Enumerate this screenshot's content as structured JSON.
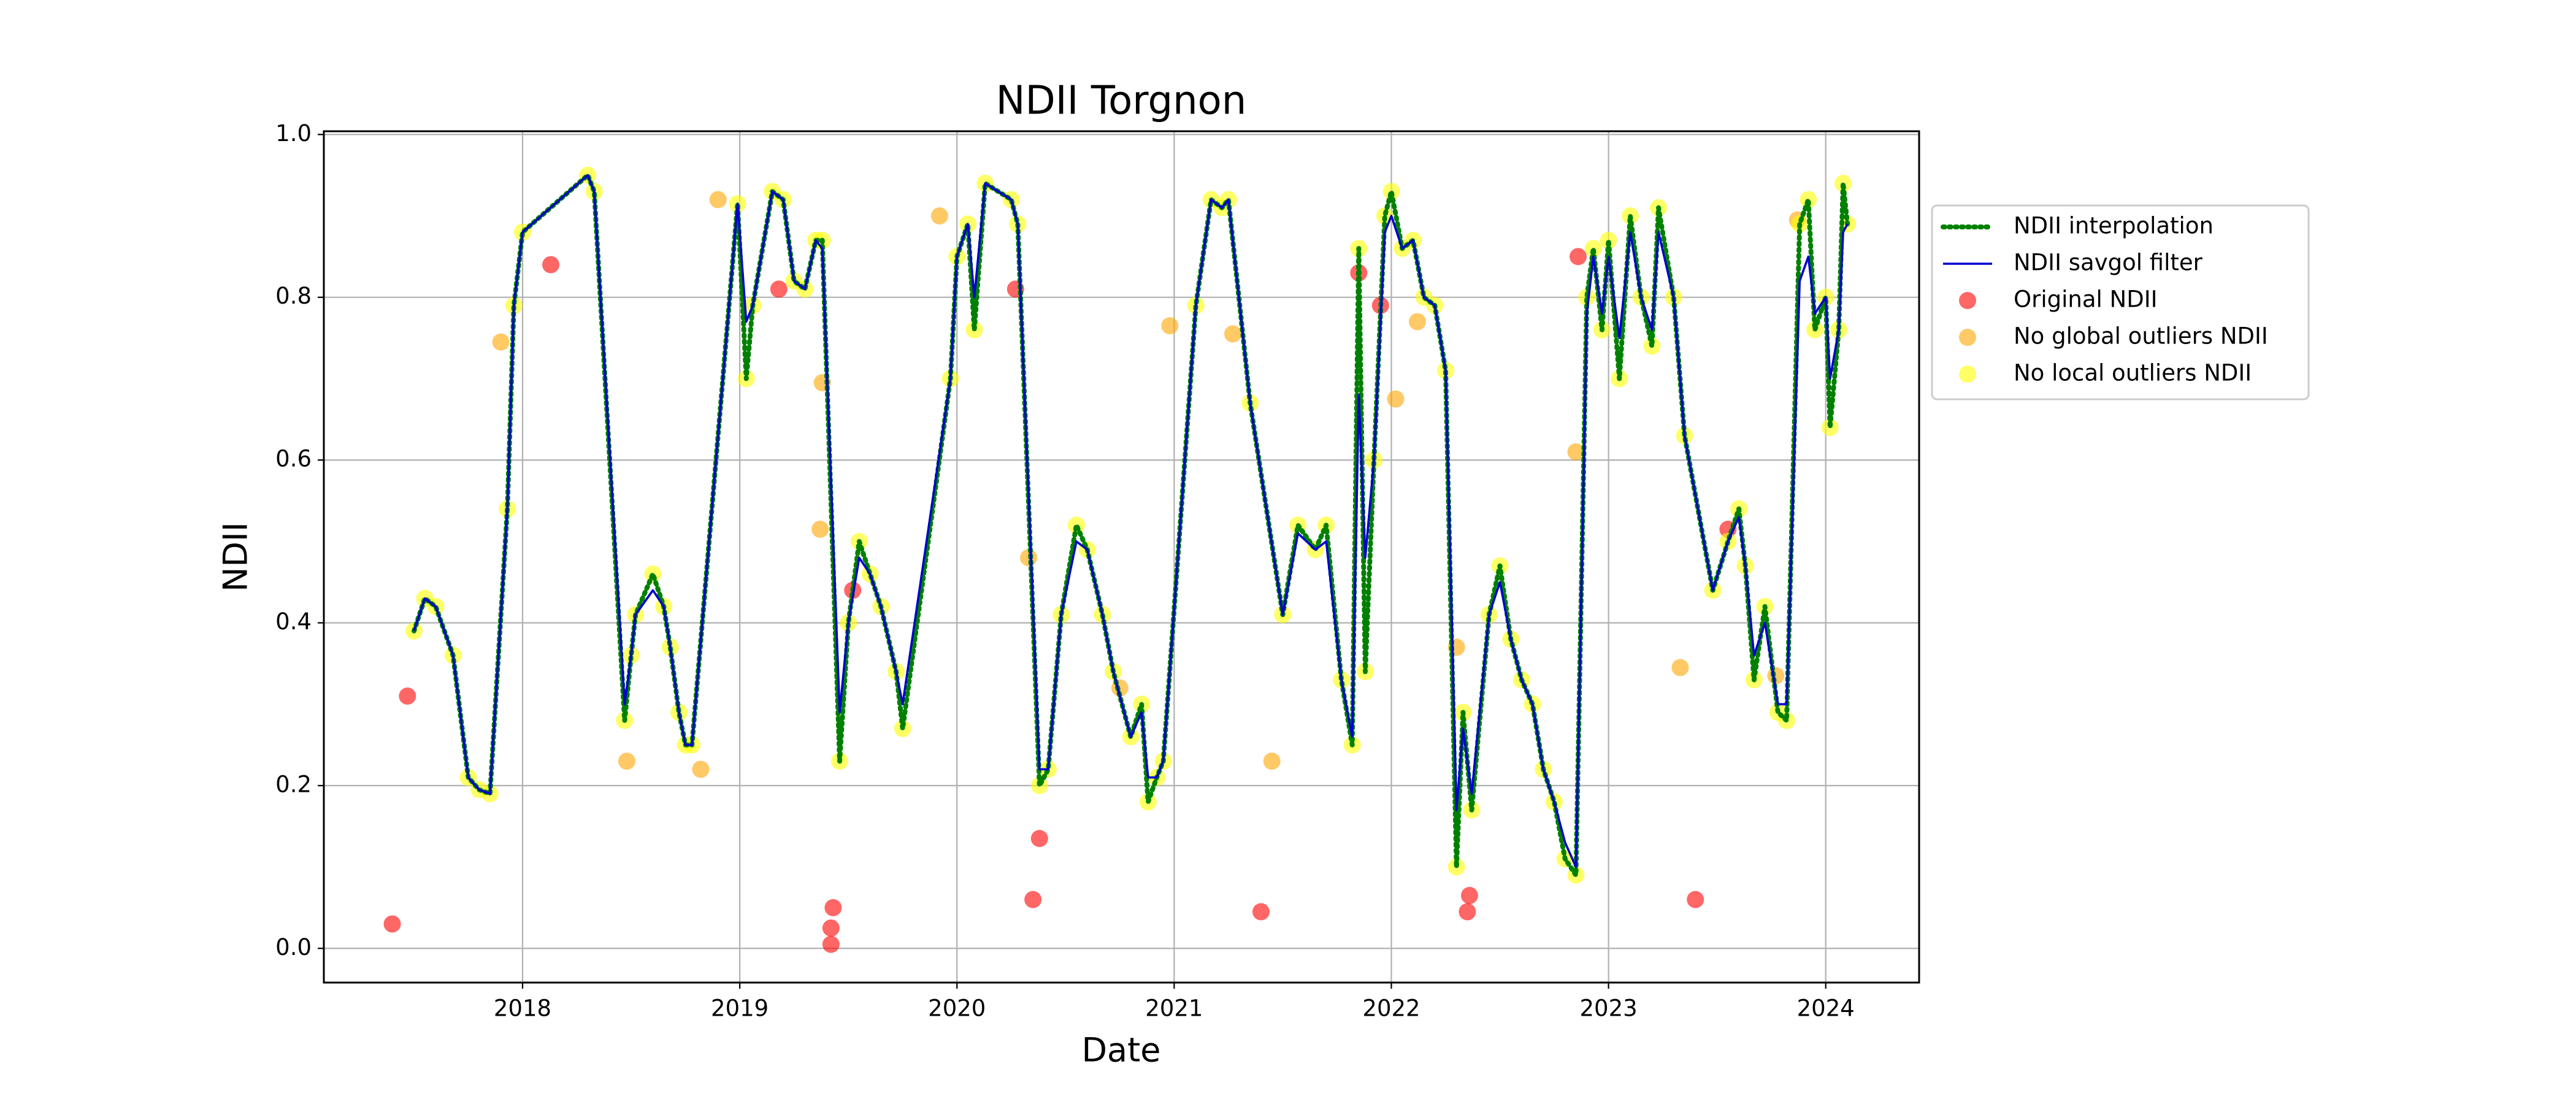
{
  "chart_data": {
    "type": "line",
    "title": "NDII Torgnon",
    "x_label": "Date",
    "y_label": "NDII",
    "xlim": [
      2017.085,
      2024.43
    ],
    "xticks": [
      2018,
      2019,
      2020,
      2021,
      2022,
      2023,
      2024
    ],
    "ylim": [
      -0.042,
      1.004
    ],
    "yticks": [
      {
        "value": 0,
        "label": "0.0"
      },
      {
        "value": 0.2,
        "label": "0.2"
      },
      {
        "value": 0.4,
        "label": "0.4"
      },
      {
        "value": 0.6,
        "label": "0.6"
      },
      {
        "value": 0.8,
        "label": "0.8"
      },
      {
        "value": 1,
        "label": "1.0"
      }
    ],
    "grid": true,
    "legend": "right",
    "x": [
      2017.5,
      2017.55,
      2017.6,
      2017.68,
      2017.75,
      2017.8,
      2017.85,
      2017.93,
      2017.96,
      2018.0,
      2018.3,
      2018.33,
      2018.47,
      2018.5,
      2018.52,
      2018.6,
      2018.65,
      2018.68,
      2018.72,
      2018.75,
      2018.78,
      2018.99,
      2019.03,
      2019.06,
      2019.15,
      2019.2,
      2019.25,
      2019.3,
      2019.35,
      2019.38,
      2019.46,
      2019.5,
      2019.55,
      2019.6,
      2019.65,
      2019.72,
      2019.75,
      2019.97,
      2020.0,
      2020.05,
      2020.08,
      2020.13,
      2020.25,
      2020.28,
      2020.38,
      2020.42,
      2020.48,
      2020.55,
      2020.6,
      2020.67,
      2020.72,
      2020.8,
      2020.85,
      2020.88,
      2020.92,
      2020.95,
      2021.1,
      2021.17,
      2021.22,
      2021.25,
      2021.35,
      2021.5,
      2021.57,
      2021.65,
      2021.7,
      2021.77,
      2021.82,
      2021.85,
      2021.88,
      2021.92,
      2021.97,
      2022.0,
      2022.05,
      2022.1,
      2022.15,
      2022.2,
      2022.25,
      2022.3,
      2022.33,
      2022.37,
      2022.45,
      2022.5,
      2022.55,
      2022.6,
      2022.65,
      2022.7,
      2022.75,
      2022.8,
      2022.85,
      2022.9,
      2022.93,
      2022.97,
      2023.0,
      2023.05,
      2023.1,
      2023.15,
      2023.2,
      2023.23,
      2023.3,
      2023.35,
      2023.48,
      2023.55,
      2023.6,
      2023.63,
      2023.67,
      2023.72,
      2023.78,
      2023.82,
      2023.88,
      2023.92,
      2023.95,
      2024.0,
      2024.02,
      2024.06,
      2024.08,
      2024.1
    ],
    "series": [
      {
        "name": "Original NDII",
        "type": "scatter",
        "color": "#ff0000",
        "x": [
          2017.4,
          2017.47,
          2018.13,
          2019.18,
          2019.42,
          2019.42,
          2019.43,
          2019.52,
          2020.27,
          2020.35,
          2020.38,
          2021.4,
          2021.85,
          2021.95,
          2022.35,
          2022.36,
          2022.86,
          2023.4,
          2023.55
        ],
        "values": [
          0.03,
          0.31,
          0.84,
          0.81,
          0.005,
          0.025,
          0.05,
          0.44,
          0.81,
          0.06,
          0.135,
          0.045,
          0.83,
          0.79,
          0.045,
          0.065,
          0.85,
          0.06,
          0.515
        ]
      },
      {
        "name": "No global outliers NDII",
        "type": "scatter",
        "color": "#ffa500",
        "x": [
          2017.9,
          2018.48,
          2018.82,
          2018.9,
          2019.37,
          2019.38,
          2019.92,
          2020.33,
          2020.75,
          2020.98,
          2021.27,
          2021.45,
          2022.02,
          2022.12,
          2022.3,
          2022.85,
          2023.33,
          2023.77,
          2023.87
        ],
        "values": [
          0.745,
          0.23,
          0.22,
          0.92,
          0.515,
          0.695,
          0.9,
          0.48,
          0.32,
          0.765,
          0.755,
          0.23,
          0.675,
          0.77,
          0.37,
          0.61,
          0.345,
          0.335,
          0.895
        ]
      },
      {
        "name": "No local outliers NDII",
        "type": "scatter",
        "color": "#ffff00",
        "values": [
          0.39,
          0.43,
          0.42,
          0.36,
          0.21,
          0.195,
          0.19,
          0.54,
          0.79,
          0.88,
          0.95,
          0.93,
          0.28,
          0.36,
          0.41,
          0.46,
          0.42,
          0.37,
          0.29,
          0.25,
          0.25,
          0.915,
          0.7,
          0.79,
          0.93,
          0.92,
          0.82,
          0.81,
          0.87,
          0.87,
          0.23,
          0.4,
          0.5,
          0.46,
          0.42,
          0.34,
          0.27,
          0.7,
          0.85,
          0.89,
          0.76,
          0.94,
          0.92,
          0.89,
          0.2,
          0.22,
          0.41,
          0.52,
          0.49,
          0.41,
          0.34,
          0.26,
          0.3,
          0.18,
          0.21,
          0.23,
          0.79,
          0.92,
          0.91,
          0.92,
          0.67,
          0.41,
          0.52,
          0.49,
          0.52,
          0.33,
          0.25,
          0.86,
          0.34,
          0.6,
          0.9,
          0.93,
          0.86,
          0.87,
          0.8,
          0.79,
          0.71,
          0.1,
          0.29,
          0.17,
          0.41,
          0.47,
          0.38,
          0.33,
          0.3,
          0.22,
          0.18,
          0.11,
          0.09,
          0.8,
          0.86,
          0.76,
          0.87,
          0.7,
          0.9,
          0.8,
          0.74,
          0.91,
          0.8,
          0.63,
          0.44,
          0.5,
          0.54,
          0.47,
          0.33,
          0.42,
          0.29,
          0.28,
          0.89,
          0.92,
          0.76,
          0.8,
          0.64,
          0.76,
          0.94,
          0.89
        ]
      },
      {
        "name": "NDII interpolation",
        "type": "line",
        "style": "dotted",
        "color": "#008000",
        "values": [
          0.39,
          0.43,
          0.42,
          0.36,
          0.21,
          0.195,
          0.19,
          0.54,
          0.79,
          0.88,
          0.95,
          0.93,
          0.28,
          0.36,
          0.41,
          0.46,
          0.42,
          0.37,
          0.29,
          0.25,
          0.25,
          0.915,
          0.7,
          0.79,
          0.93,
          0.92,
          0.82,
          0.81,
          0.87,
          0.87,
          0.23,
          0.4,
          0.5,
          0.46,
          0.42,
          0.34,
          0.27,
          0.7,
          0.85,
          0.89,
          0.76,
          0.94,
          0.92,
          0.89,
          0.2,
          0.22,
          0.41,
          0.52,
          0.49,
          0.41,
          0.34,
          0.26,
          0.3,
          0.18,
          0.21,
          0.23,
          0.79,
          0.92,
          0.91,
          0.92,
          0.67,
          0.41,
          0.52,
          0.49,
          0.52,
          0.33,
          0.25,
          0.86,
          0.34,
          0.6,
          0.9,
          0.93,
          0.86,
          0.87,
          0.8,
          0.79,
          0.71,
          0.1,
          0.29,
          0.17,
          0.41,
          0.47,
          0.38,
          0.33,
          0.3,
          0.22,
          0.18,
          0.11,
          0.09,
          0.8,
          0.86,
          0.76,
          0.87,
          0.7,
          0.9,
          0.8,
          0.74,
          0.91,
          0.8,
          0.63,
          0.44,
          0.5,
          0.54,
          0.47,
          0.33,
          0.42,
          0.29,
          0.28,
          0.89,
          0.92,
          0.76,
          0.8,
          0.64,
          0.76,
          0.94,
          0.89
        ]
      },
      {
        "name": "NDII savgol filter",
        "type": "line",
        "style": "solid",
        "color": "#0000cd",
        "values": [
          0.39,
          0.43,
          0.42,
          0.36,
          0.21,
          0.195,
          0.19,
          0.54,
          0.79,
          0.88,
          0.95,
          0.93,
          0.3,
          0.36,
          0.41,
          0.44,
          0.42,
          0.37,
          0.29,
          0.25,
          0.25,
          0.915,
          0.77,
          0.79,
          0.93,
          0.92,
          0.82,
          0.81,
          0.87,
          0.86,
          0.29,
          0.4,
          0.48,
          0.46,
          0.42,
          0.34,
          0.3,
          0.7,
          0.85,
          0.89,
          0.8,
          0.94,
          0.92,
          0.89,
          0.22,
          0.22,
          0.41,
          0.5,
          0.49,
          0.41,
          0.34,
          0.26,
          0.29,
          0.21,
          0.21,
          0.23,
          0.79,
          0.92,
          0.91,
          0.92,
          0.67,
          0.41,
          0.51,
          0.49,
          0.5,
          0.33,
          0.26,
          0.68,
          0.48,
          0.6,
          0.88,
          0.9,
          0.86,
          0.87,
          0.8,
          0.79,
          0.71,
          0.17,
          0.27,
          0.19,
          0.41,
          0.45,
          0.38,
          0.33,
          0.3,
          0.22,
          0.18,
          0.13,
          0.1,
          0.78,
          0.85,
          0.78,
          0.85,
          0.75,
          0.88,
          0.8,
          0.76,
          0.88,
          0.8,
          0.63,
          0.44,
          0.5,
          0.53,
          0.47,
          0.36,
          0.4,
          0.3,
          0.3,
          0.82,
          0.85,
          0.78,
          0.8,
          0.7,
          0.76,
          0.88,
          0.89
        ]
      }
    ]
  }
}
